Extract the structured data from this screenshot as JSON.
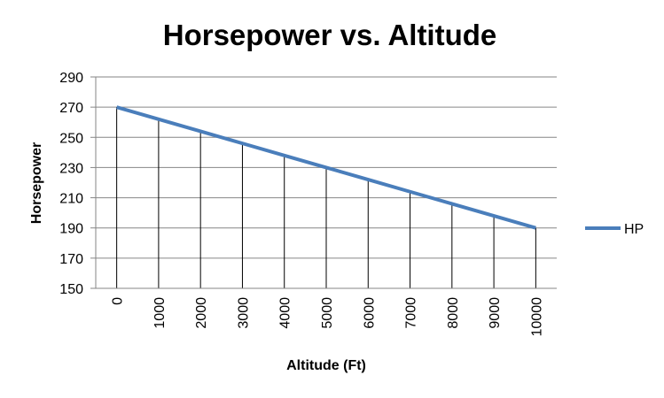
{
  "chart_data": {
    "type": "line",
    "title": "Horsepower vs. Altitude",
    "xlabel": "Altitude (Ft)",
    "ylabel": "Horsepower",
    "categories": [
      "0",
      "1000",
      "2000",
      "3000",
      "4000",
      "5000",
      "6000",
      "7000",
      "8000",
      "9000",
      "10000"
    ],
    "series": [
      {
        "name": "HP",
        "values": [
          270,
          262,
          254,
          246,
          238,
          230,
          222,
          214,
          206,
          198,
          190
        ],
        "color": "#4a7ebb"
      }
    ],
    "ylim": [
      150,
      290
    ],
    "yticks": [
      150,
      170,
      190,
      210,
      230,
      250,
      270,
      290
    ],
    "grid": "horizontal",
    "drop_lines": true,
    "legend": "right"
  }
}
